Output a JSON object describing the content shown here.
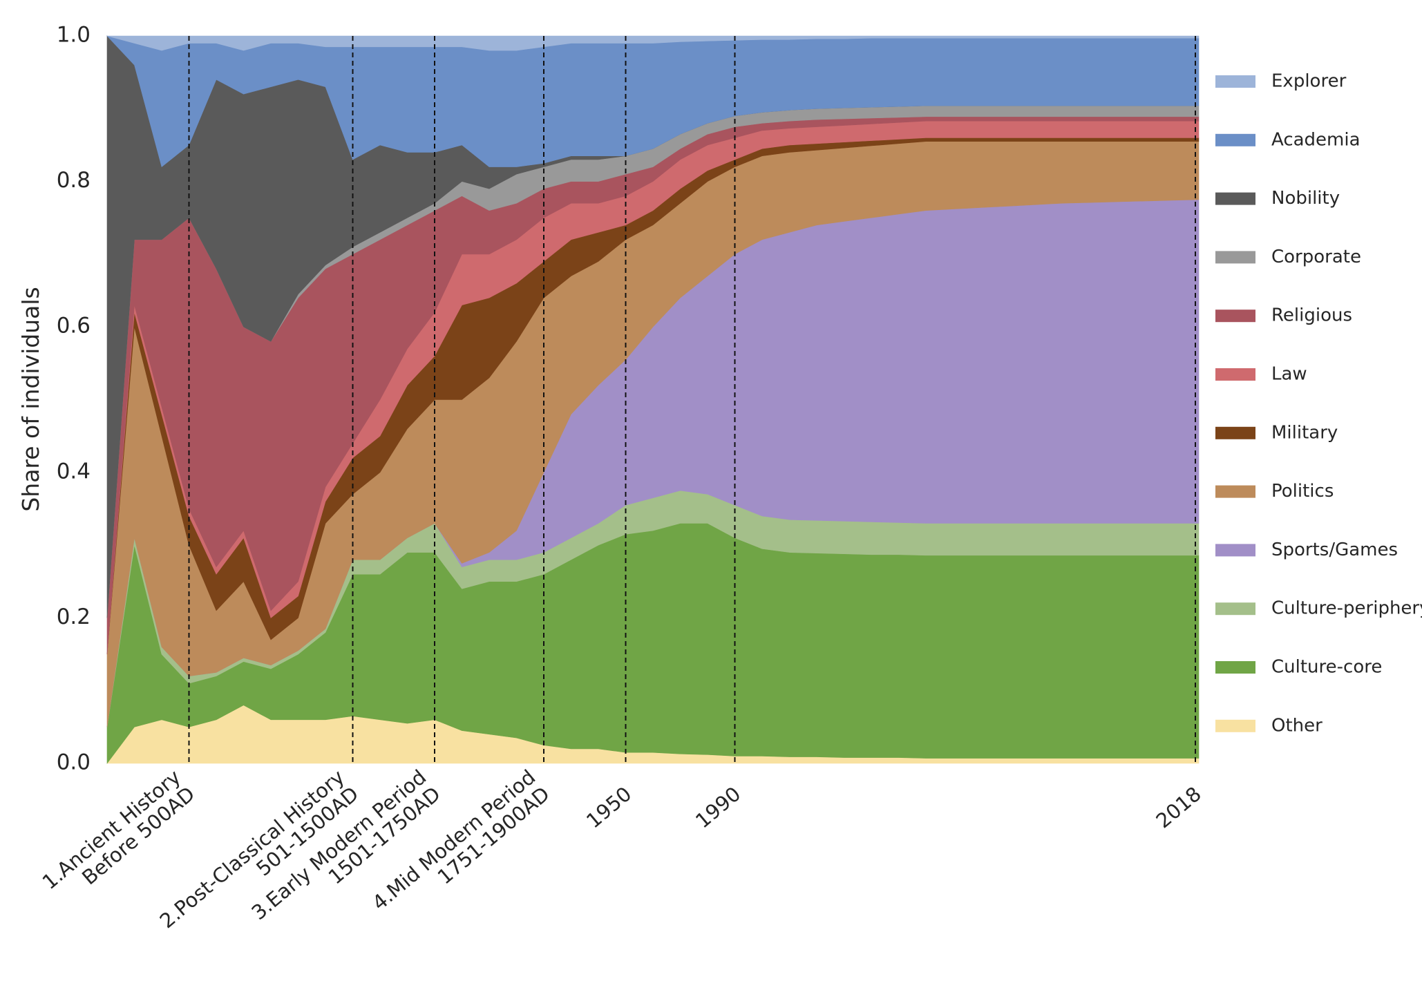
{
  "chart_data": {
    "type": "stacked_area",
    "y_label": "Share of individuals",
    "ylim": [
      0,
      1
    ],
    "yticks": [
      {
        "value": 0,
        "label": "0.0"
      },
      0.2,
      0.4,
      0.6,
      0.8,
      {
        "value": 1,
        "label": "1.0"
      }
    ],
    "categories": [
      null,
      null,
      null,
      "1.Ancient History\nBefore 500AD",
      null,
      null,
      null,
      null,
      null,
      "2.Post-Classical History\n501-1500AD",
      null,
      null,
      "3.Early Modern Period\n1501-1750AD",
      null,
      null,
      null,
      "4.Mid Modern Period\n1751-1900AD",
      null,
      null,
      "1950",
      null,
      null,
      null,
      "1990",
      null,
      null,
      null,
      null,
      null,
      null,
      null,
      null,
      null,
      null,
      null,
      null,
      null,
      null,
      null,
      null,
      "2018"
    ],
    "series": [
      {
        "name": "Other",
        "color": "#f8e1a1",
        "values": [
          0,
          0.05,
          0.06,
          0.05,
          0.06,
          0.08,
          0.06,
          0.06,
          0.06,
          0.065,
          0.06,
          0.055,
          0.06,
          0.045,
          0.04,
          0.035,
          0.025,
          0.02,
          0.02,
          0.015,
          0.015,
          0.013,
          0.012,
          0.01,
          0.01,
          0.009,
          0.009,
          0.008,
          0.008,
          0.008,
          0.007,
          0.007,
          0.007,
          0.007,
          0.007,
          0.007,
          0.007,
          0.007,
          0.007,
          0.007,
          0.007
        ]
      },
      {
        "name": "Culture-core",
        "color": "#70a546",
        "values": [
          0.05,
          0.25,
          0.09,
          0.06,
          0.06,
          0.06,
          0.07,
          0.09,
          0.12,
          0.195,
          0.2,
          0.235,
          0.23,
          0.195,
          0.21,
          0.215,
          0.235,
          0.26,
          0.28,
          0.3,
          0.305,
          0.317,
          0.318,
          0.3,
          0.285,
          0.281,
          0.28,
          0.28,
          0.279,
          0.279,
          0.279,
          0.279,
          0.279,
          0.279,
          0.279,
          0.279,
          0.279,
          0.279,
          0.279,
          0.279,
          0.279
        ]
      },
      {
        "name": "Culture-periphery",
        "color": "#a4bf8a",
        "values": [
          0,
          0.01,
          0.01,
          0.01,
          0.005,
          0.005,
          0.005,
          0.005,
          0.005,
          0.02,
          0.02,
          0.02,
          0.04,
          0.03,
          0.03,
          0.03,
          0.03,
          0.03,
          0.03,
          0.04,
          0.045,
          0.045,
          0.04,
          0.045,
          0.045,
          0.045,
          0.045,
          0.045,
          0.045,
          0.044,
          0.044,
          0.044,
          0.044,
          0.044,
          0.044,
          0.044,
          0.044,
          0.044,
          0.044,
          0.044,
          0.044
        ]
      },
      {
        "name": "Sports/Games",
        "color": "#a18fc7",
        "values": [
          0,
          0,
          0,
          0,
          0,
          0,
          0,
          0,
          0,
          0,
          0,
          0,
          0,
          0.005,
          0.01,
          0.04,
          0.11,
          0.17,
          0.19,
          0.2,
          0.235,
          0.265,
          0.3,
          0.345,
          0.38,
          0.395,
          0.406,
          0.412,
          0.418,
          0.424,
          0.43,
          0.432,
          0.434,
          0.436,
          0.438,
          0.44,
          0.441,
          0.442,
          0.443,
          0.444,
          0.445
        ]
      },
      {
        "name": "Politics",
        "color": "#bd8b5b",
        "values": [
          0.1,
          0.29,
          0.29,
          0.18,
          0.085,
          0.105,
          0.035,
          0.045,
          0.145,
          0.09,
          0.12,
          0.15,
          0.17,
          0.225,
          0.24,
          0.26,
          0.24,
          0.19,
          0.17,
          0.165,
          0.14,
          0.13,
          0.13,
          0.12,
          0.115,
          0.11,
          0.103,
          0.101,
          0.099,
          0.097,
          0.095,
          0.093,
          0.091,
          0.089,
          0.087,
          0.085,
          0.084,
          0.083,
          0.082,
          0.081,
          0.08
        ]
      },
      {
        "name": "Military",
        "color": "#7b4318",
        "values": [
          0,
          0.02,
          0.03,
          0.04,
          0.05,
          0.06,
          0.03,
          0.03,
          0.03,
          0.05,
          0.05,
          0.06,
          0.06,
          0.13,
          0.11,
          0.08,
          0.05,
          0.05,
          0.04,
          0.02,
          0.02,
          0.02,
          0.015,
          0.01,
          0.01,
          0.01,
          0.009,
          0.008,
          0.007,
          0.006,
          0.005,
          0.005,
          0.005,
          0.005,
          0.005,
          0.005,
          0.005,
          0.005,
          0.005,
          0.005,
          0.005
        ]
      },
      {
        "name": "Law",
        "color": "#cf6a6e",
        "values": [
          0,
          0.01,
          0.01,
          0.01,
          0.01,
          0.01,
          0.01,
          0.02,
          0.02,
          0.02,
          0.05,
          0.05,
          0.06,
          0.07,
          0.06,
          0.06,
          0.06,
          0.05,
          0.04,
          0.04,
          0.04,
          0.04,
          0.035,
          0.03,
          0.025,
          0.023,
          0.023,
          0.023,
          0.023,
          0.023,
          0.023,
          0.023,
          0.023,
          0.023,
          0.023,
          0.023,
          0.023,
          0.023,
          0.023,
          0.023,
          0.023
        ]
      },
      {
        "name": "Religious",
        "color": "#a9545e",
        "values": [
          0.05,
          0.09,
          0.23,
          0.4,
          0.41,
          0.28,
          0.37,
          0.39,
          0.3,
          0.26,
          0.22,
          0.17,
          0.14,
          0.08,
          0.06,
          0.05,
          0.04,
          0.03,
          0.03,
          0.03,
          0.02,
          0.015,
          0.015,
          0.015,
          0.01,
          0.01,
          0.01,
          0.009,
          0.008,
          0.007,
          0.006,
          0.006,
          0.006,
          0.006,
          0.006,
          0.006,
          0.006,
          0.006,
          0.006,
          0.006,
          0.006
        ]
      },
      {
        "name": "Corporate",
        "color": "#999999",
        "values": [
          0,
          0,
          0,
          0,
          0,
          0,
          0,
          0.005,
          0.005,
          0.01,
          0.01,
          0.01,
          0.01,
          0.02,
          0.03,
          0.04,
          0.03,
          0.03,
          0.03,
          0.025,
          0.025,
          0.02,
          0.015,
          0.015,
          0.015,
          0.015,
          0.015,
          0.015,
          0.015,
          0.015,
          0.015,
          0.015,
          0.015,
          0.015,
          0.015,
          0.015,
          0.015,
          0.015,
          0.015,
          0.015,
          0.015
        ]
      },
      {
        "name": "Nobility",
        "color": "#5a5a5a",
        "values": [
          0.8,
          0.24,
          0.1,
          0.1,
          0.26,
          0.32,
          0.35,
          0.295,
          0.245,
          0.12,
          0.12,
          0.09,
          0.07,
          0.05,
          0.03,
          0.01,
          0.005,
          0.005,
          0.005,
          0,
          0,
          0,
          0,
          0,
          0,
          0,
          0,
          0,
          0,
          0,
          0,
          0,
          0,
          0,
          0,
          0,
          0,
          0,
          0,
          0,
          0
        ]
      },
      {
        "name": "Academia",
        "color": "#6b8fc7",
        "values": [
          0,
          0.03,
          0.16,
          0.14,
          0.05,
          0.06,
          0.06,
          0.05,
          0.055,
          0.155,
          0.135,
          0.145,
          0.145,
          0.135,
          0.16,
          0.16,
          0.16,
          0.155,
          0.155,
          0.155,
          0.145,
          0.127,
          0.113,
          0.104,
          0.1,
          0.097,
          0.096,
          0.095,
          0.095,
          0.094,
          0.093,
          0.093,
          0.093,
          0.093,
          0.093,
          0.093,
          0.093,
          0.093,
          0.093,
          0.093,
          0.093
        ]
      },
      {
        "name": "Explorer",
        "color": "#9db4d9",
        "values": [
          0,
          0.01,
          0.02,
          0.01,
          0.01,
          0.02,
          0.01,
          0.01,
          0.015,
          0.015,
          0.015,
          0.015,
          0.015,
          0.015,
          0.02,
          0.02,
          0.015,
          0.01,
          0.01,
          0.01,
          0.01,
          0.008,
          0.007,
          0.006,
          0.005,
          0.005,
          0.004,
          0.004,
          0.003,
          0.003,
          0.003,
          0.003,
          0.003,
          0.003,
          0.003,
          0.003,
          0.003,
          0.003,
          0.003,
          0.003,
          0.003
        ]
      }
    ]
  }
}
